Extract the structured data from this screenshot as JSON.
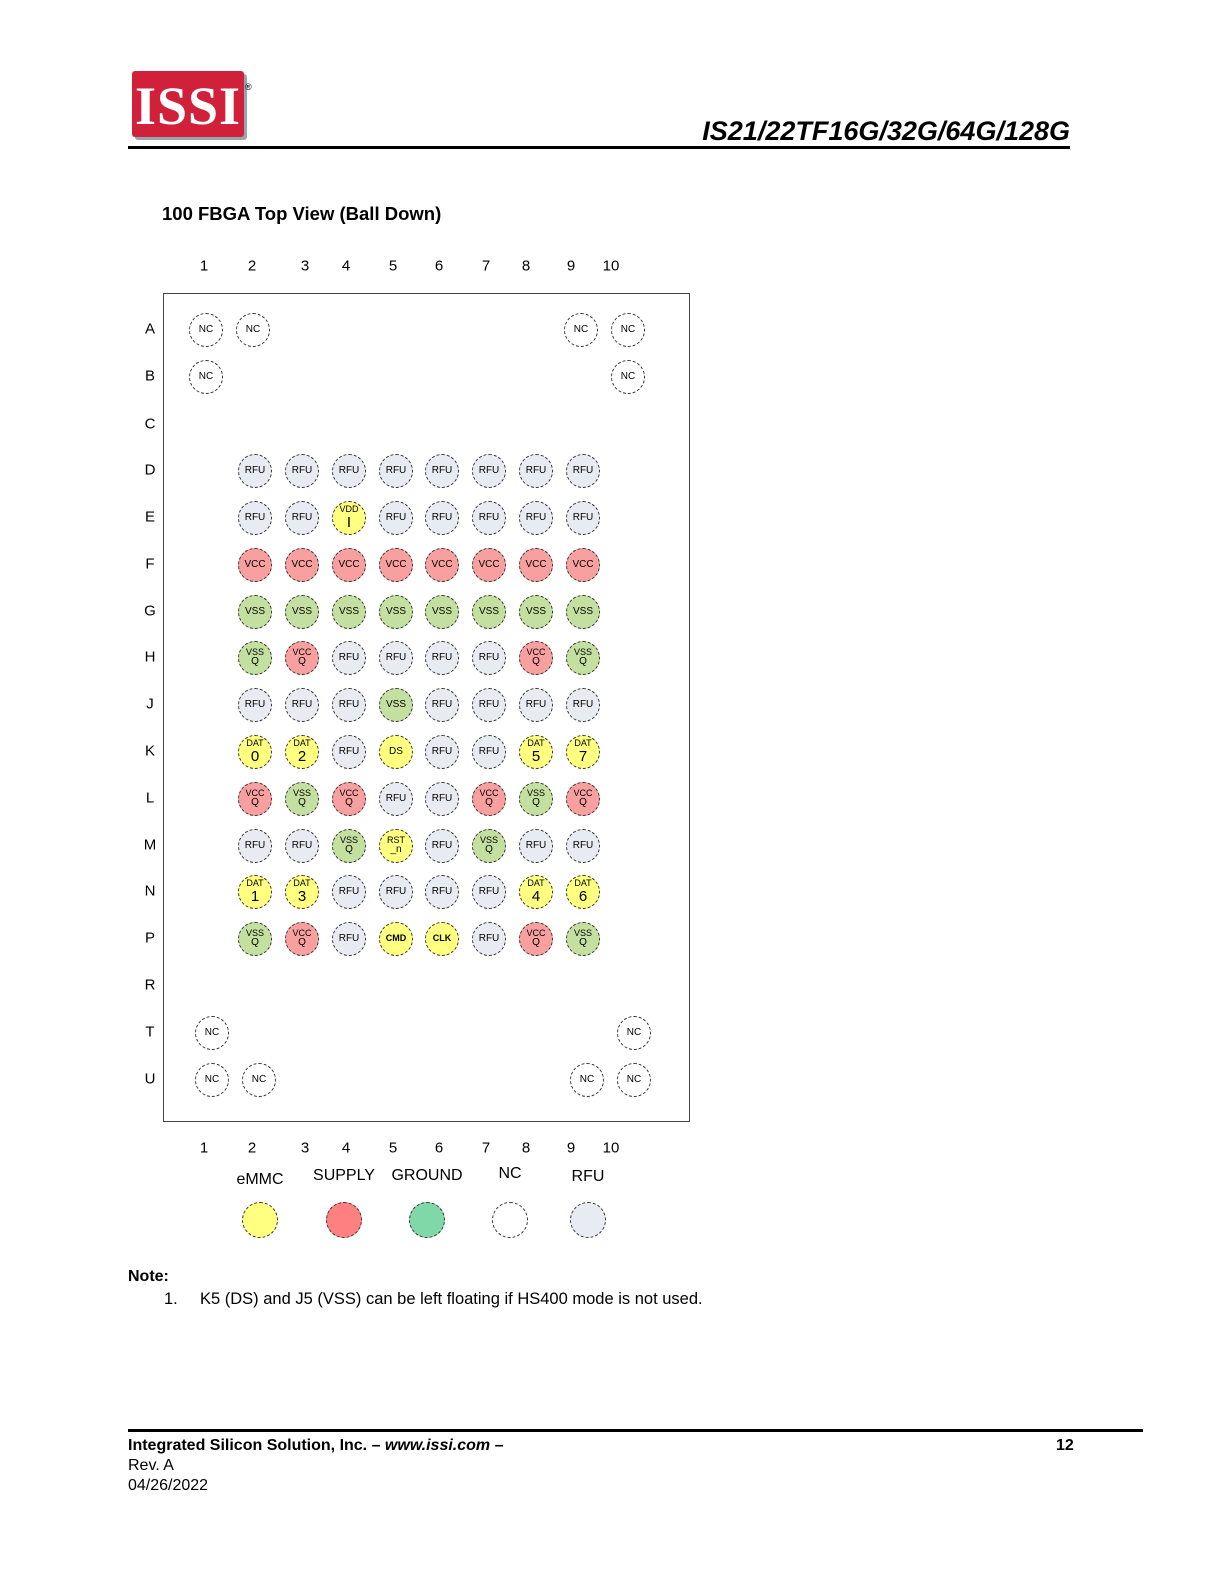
{
  "header": {
    "logo_text": "ISSI",
    "registered_mark": "®",
    "doc_title": "IS21/22TF16G/32G/64G/128G"
  },
  "figure": {
    "title": "100 FBGA Top View (Ball Down)",
    "column_labels": [
      "1",
      "2",
      "3",
      "4",
      "5",
      "6",
      "7",
      "8",
      "9",
      "10"
    ],
    "row_labels": [
      "A",
      "B",
      "C",
      "D",
      "E",
      "F",
      "G",
      "H",
      "J",
      "K",
      "L",
      "M",
      "N",
      "P",
      "R",
      "T",
      "U"
    ]
  },
  "colors": {
    "emmc": "#ffff80",
    "supply": "#ff8080",
    "ground": "#80d8a8",
    "nc": "#ffffff",
    "rfu": "#e8ecf2",
    "vcc_ball": "#f8a0a0",
    "vss_ball": "#c4e0a0"
  },
  "balls": [
    {
      "pos": "A1",
      "top": "NC",
      "type": "nc"
    },
    {
      "pos": "A2",
      "top": "NC",
      "type": "nc"
    },
    {
      "pos": "A9",
      "top": "NC",
      "type": "nc"
    },
    {
      "pos": "A10",
      "top": "NC",
      "type": "nc"
    },
    {
      "pos": "B1",
      "top": "NC",
      "type": "nc"
    },
    {
      "pos": "B10",
      "top": "NC",
      "type": "nc"
    },
    {
      "pos": "D2",
      "top": "RFU",
      "type": "rfu"
    },
    {
      "pos": "D3",
      "top": "RFU",
      "type": "rfu"
    },
    {
      "pos": "D4",
      "top": "RFU",
      "type": "rfu"
    },
    {
      "pos": "D5",
      "top": "RFU",
      "type": "rfu"
    },
    {
      "pos": "D6",
      "top": "RFU",
      "type": "rfu"
    },
    {
      "pos": "D7",
      "top": "RFU",
      "type": "rfu"
    },
    {
      "pos": "D8",
      "top": "RFU",
      "type": "rfu"
    },
    {
      "pos": "D9",
      "top": "RFU",
      "type": "rfu"
    },
    {
      "pos": "E2",
      "top": "RFU",
      "type": "rfu"
    },
    {
      "pos": "E3",
      "top": "RFU",
      "type": "rfu"
    },
    {
      "pos": "E4",
      "top": "VDD",
      "bottom": "I",
      "type": "emmc"
    },
    {
      "pos": "E5",
      "top": "RFU",
      "type": "rfu"
    },
    {
      "pos": "E6",
      "top": "RFU",
      "type": "rfu"
    },
    {
      "pos": "E7",
      "top": "RFU",
      "type": "rfu"
    },
    {
      "pos": "E8",
      "top": "RFU",
      "type": "rfu"
    },
    {
      "pos": "E9",
      "top": "RFU",
      "type": "rfu"
    },
    {
      "pos": "F2",
      "top": "VCC",
      "type": "vcc"
    },
    {
      "pos": "F3",
      "top": "VCC",
      "type": "vcc"
    },
    {
      "pos": "F4",
      "top": "VCC",
      "type": "vcc"
    },
    {
      "pos": "F5",
      "top": "VCC",
      "type": "vcc"
    },
    {
      "pos": "F6",
      "top": "VCC",
      "type": "vcc"
    },
    {
      "pos": "F7",
      "top": "VCC",
      "type": "vcc"
    },
    {
      "pos": "F8",
      "top": "VCC",
      "type": "vcc"
    },
    {
      "pos": "F9",
      "top": "VCC",
      "type": "vcc"
    },
    {
      "pos": "G2",
      "top": "VSS",
      "type": "vss"
    },
    {
      "pos": "G3",
      "top": "VSS",
      "type": "vss"
    },
    {
      "pos": "G4",
      "top": "VSS",
      "type": "vss"
    },
    {
      "pos": "G5",
      "top": "VSS",
      "type": "vss"
    },
    {
      "pos": "G6",
      "top": "VSS",
      "type": "vss"
    },
    {
      "pos": "G7",
      "top": "VSS",
      "type": "vss"
    },
    {
      "pos": "G8",
      "top": "VSS",
      "type": "vss"
    },
    {
      "pos": "G9",
      "top": "VSS",
      "type": "vss"
    },
    {
      "pos": "H2",
      "top": "VSS",
      "bottom": "Q",
      "type": "vss"
    },
    {
      "pos": "H3",
      "top": "VCC",
      "bottom": "Q",
      "type": "vcc"
    },
    {
      "pos": "H4",
      "top": "RFU",
      "type": "rfu"
    },
    {
      "pos": "H5",
      "top": "RFU",
      "type": "rfu"
    },
    {
      "pos": "H6",
      "top": "RFU",
      "type": "rfu"
    },
    {
      "pos": "H7",
      "top": "RFU",
      "type": "rfu"
    },
    {
      "pos": "H8",
      "top": "VCC",
      "bottom": "Q",
      "type": "vcc"
    },
    {
      "pos": "H9",
      "top": "VSS",
      "bottom": "Q",
      "type": "vss"
    },
    {
      "pos": "J2",
      "top": "RFU",
      "type": "rfu"
    },
    {
      "pos": "J3",
      "top": "RFU",
      "type": "rfu"
    },
    {
      "pos": "J4",
      "top": "RFU",
      "type": "rfu"
    },
    {
      "pos": "J5",
      "top": "VSS",
      "type": "vss"
    },
    {
      "pos": "J6",
      "top": "RFU",
      "type": "rfu"
    },
    {
      "pos": "J7",
      "top": "RFU",
      "type": "rfu"
    },
    {
      "pos": "J8",
      "top": "RFU",
      "type": "rfu"
    },
    {
      "pos": "J9",
      "top": "RFU",
      "type": "rfu"
    },
    {
      "pos": "K2",
      "top": "DAT",
      "bottom": "0",
      "type": "emmc"
    },
    {
      "pos": "K3",
      "top": "DAT",
      "bottom": "2",
      "type": "emmc"
    },
    {
      "pos": "K4",
      "top": "RFU",
      "type": "rfu"
    },
    {
      "pos": "K5",
      "top": "DS",
      "type": "emmc"
    },
    {
      "pos": "K6",
      "top": "RFU",
      "type": "rfu"
    },
    {
      "pos": "K7",
      "top": "RFU",
      "type": "rfu"
    },
    {
      "pos": "K8",
      "top": "DAT",
      "bottom": "5",
      "type": "emmc"
    },
    {
      "pos": "K9",
      "top": "DAT",
      "bottom": "7",
      "type": "emmc"
    },
    {
      "pos": "L2",
      "top": "VCC",
      "bottom": "Q",
      "type": "vcc"
    },
    {
      "pos": "L3",
      "top": "VSS",
      "bottom": "Q",
      "type": "vss"
    },
    {
      "pos": "L4",
      "top": "VCC",
      "bottom": "Q",
      "type": "vcc"
    },
    {
      "pos": "L5",
      "top": "RFU",
      "type": "rfu"
    },
    {
      "pos": "L6",
      "top": "RFU",
      "type": "rfu"
    },
    {
      "pos": "L7",
      "top": "VCC",
      "bottom": "Q",
      "type": "vcc"
    },
    {
      "pos": "L8",
      "top": "VSS",
      "bottom": "Q",
      "type": "vss"
    },
    {
      "pos": "L9",
      "top": "VCC",
      "bottom": "Q",
      "type": "vcc"
    },
    {
      "pos": "M2",
      "top": "RFU",
      "type": "rfu"
    },
    {
      "pos": "M3",
      "top": "RFU",
      "type": "rfu"
    },
    {
      "pos": "M4",
      "top": "VSS",
      "bottom": "Q",
      "type": "vss"
    },
    {
      "pos": "M5",
      "top": "RST",
      "bottom": "_n",
      "type": "emmc"
    },
    {
      "pos": "M6",
      "top": "RFU",
      "type": "rfu"
    },
    {
      "pos": "M7",
      "top": "VSS",
      "bottom": "Q",
      "type": "vss"
    },
    {
      "pos": "M8",
      "top": "RFU",
      "type": "rfu"
    },
    {
      "pos": "M9",
      "top": "RFU",
      "type": "rfu"
    },
    {
      "pos": "N2",
      "top": "DAT",
      "bottom": "1",
      "type": "emmc"
    },
    {
      "pos": "N3",
      "top": "DAT",
      "bottom": "3",
      "type": "emmc"
    },
    {
      "pos": "N4",
      "top": "RFU",
      "type": "rfu"
    },
    {
      "pos": "N5",
      "top": "RFU",
      "type": "rfu"
    },
    {
      "pos": "N6",
      "top": "RFU",
      "type": "rfu"
    },
    {
      "pos": "N7",
      "top": "RFU",
      "type": "rfu"
    },
    {
      "pos": "N8",
      "top": "DAT",
      "bottom": "4",
      "type": "emmc"
    },
    {
      "pos": "N9",
      "top": "DAT",
      "bottom": "6",
      "type": "emmc"
    },
    {
      "pos": "P2",
      "top": "VSS",
      "bottom": "Q",
      "type": "vss"
    },
    {
      "pos": "P3",
      "top": "VCC",
      "bottom": "Q",
      "type": "vcc"
    },
    {
      "pos": "P4",
      "top": "RFU",
      "type": "rfu"
    },
    {
      "pos": "P5",
      "top": "CMD",
      "type": "emmc",
      "bold": true
    },
    {
      "pos": "P6",
      "top": "CLK",
      "type": "emmc",
      "bold": true
    },
    {
      "pos": "P7",
      "top": "RFU",
      "type": "rfu"
    },
    {
      "pos": "P8",
      "top": "VCC",
      "bottom": "Q",
      "type": "vcc"
    },
    {
      "pos": "P9",
      "top": "VSS",
      "bottom": "Q",
      "type": "vss"
    },
    {
      "pos": "T1",
      "top": "NC",
      "type": "nc"
    },
    {
      "pos": "T10",
      "top": "NC",
      "type": "nc"
    },
    {
      "pos": "U1",
      "top": "NC",
      "type": "nc"
    },
    {
      "pos": "U2",
      "top": "NC",
      "type": "nc"
    },
    {
      "pos": "U9",
      "top": "NC",
      "type": "nc"
    },
    {
      "pos": "U10",
      "top": "NC",
      "type": "nc"
    }
  ],
  "legend": [
    {
      "label": "eMMC",
      "type": "emmc"
    },
    {
      "label": "SUPPLY",
      "type": "supply"
    },
    {
      "label": "GROUND",
      "type": "ground"
    },
    {
      "label": "NC",
      "type": "nc"
    },
    {
      "label": "RFU",
      "type": "rfu"
    }
  ],
  "note": {
    "title": "Note:",
    "items": [
      {
        "num": "1.",
        "text": "K5 (DS) and J5 (VSS) can be left floating if HS400 mode is not used."
      }
    ]
  },
  "footer": {
    "company": "Integrated Silicon Solution, Inc. – ",
    "website": "www.issi.com",
    "dash": " –",
    "page": "12",
    "rev": "Rev. A",
    "date": "04/26/2022"
  }
}
